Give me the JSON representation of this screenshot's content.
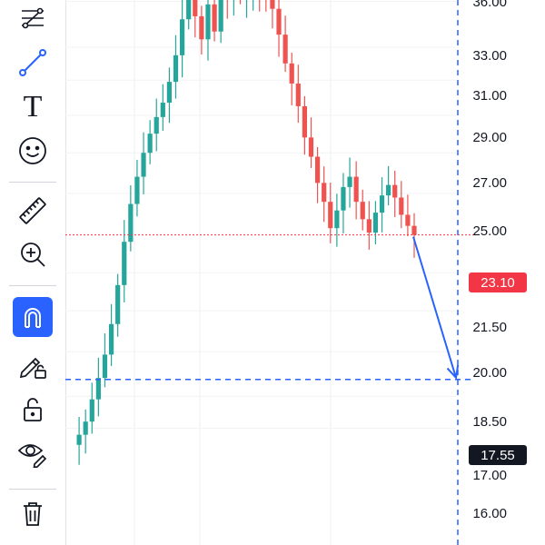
{
  "toolbar": {
    "tools": [
      {
        "name": "fib-retracement-tool-icon",
        "active": false
      },
      {
        "name": "trend-line-tool-icon",
        "active": false
      },
      {
        "name": "text-tool-icon",
        "active": false
      },
      {
        "name": "emoji-tool-icon",
        "active": false
      },
      {
        "name": "ruler-tool-icon",
        "active": false
      },
      {
        "name": "zoom-in-icon",
        "active": false
      },
      {
        "name": "magnet-icon",
        "active": true
      },
      {
        "name": "lock-drawings-icon",
        "active": false
      },
      {
        "name": "unlock-icon",
        "active": false
      },
      {
        "name": "eye-icon",
        "active": false
      },
      {
        "name": "trash-icon",
        "active": false
      }
    ],
    "text_tool_glyph": "T"
  },
  "colors": {
    "up": "#26a69a",
    "down": "#ef5350",
    "accent": "#2962ff",
    "current_price_tag": "#f23645",
    "target_tag": "#131722"
  },
  "price_axis": {
    "labels": [
      "36.00",
      "33.00",
      "31.00",
      "29.00",
      "27.00",
      "25.00",
      "21.50",
      "20.00",
      "18.50",
      "17.00",
      "16.00"
    ]
  },
  "current_price": {
    "label": "23.10",
    "value": 23.1
  },
  "target_price": {
    "label": "17.55",
    "value": 17.55
  },
  "chart_data": {
    "type": "candlestick",
    "y_axis_scale": "log",
    "close_path": [
      15.5,
      15.8,
      16.2,
      16.9,
      17.6,
      18.4,
      19.5,
      21.0,
      22.8,
      24.5,
      25.8,
      27.0,
      28.0,
      28.9,
      29.7,
      30.9,
      32.5,
      34.8,
      36.5,
      35.0,
      33.5,
      35.8,
      34.0,
      36.8,
      36.2,
      37.0,
      36.5,
      36.8,
      37.0,
      36.4,
      36.2,
      35.5,
      33.8,
      32.0,
      30.8,
      29.5,
      27.8,
      26.8,
      25.5,
      24.6,
      23.4,
      24.2,
      25.3,
      25.8,
      24.6,
      23.8,
      23.2,
      24.1,
      24.9,
      25.4,
      24.8,
      24.0,
      23.5,
      23.1
    ]
  }
}
